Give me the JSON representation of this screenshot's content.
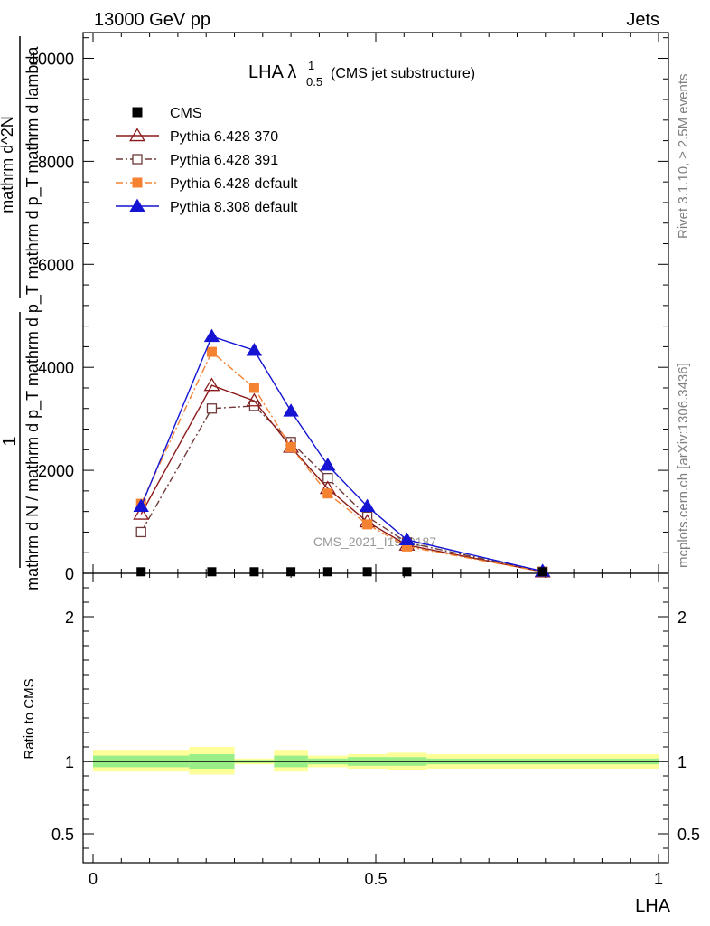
{
  "header": {
    "energy_label": "13000 GeV pp",
    "category_label": "Jets"
  },
  "side_labels": {
    "rivet": "Rivet 3.1.10, ≥ 2.5M events",
    "mcplots": "mcplots.cern.ch [arXiv:1306.3436]"
  },
  "chart_data": {
    "type": "line",
    "title_main": "LHA λ",
    "title_sup": "1",
    "title_sub": "0.5",
    "title_suffix": "(CMS jet substructure)",
    "watermark": "CMS_2021_I1920187",
    "xlabel": "LHA",
    "ylabel_top": "1",
    "ylabel_bottom": "mathrm d N / mathrm d p_T mathrm d p_T",
    "ylabel_right_num": "mathrm d^2N",
    "ylabel_right_den": "mathrm d p_T mathrm d lambda",
    "ratio_ylabel": "Ratio to CMS",
    "xlim": [
      0,
      1
    ],
    "ylim": [
      0,
      10500
    ],
    "ratio_ylim": [
      0.3,
      2.3
    ],
    "x_ticks": [
      "0",
      "0.5",
      "1"
    ],
    "y_ticks": [
      "0",
      "2000",
      "4000",
      "6000",
      "8000",
      "10000"
    ],
    "ratio_ticks": [
      "0.5",
      "1",
      "2"
    ],
    "x": [
      0.085,
      0.21,
      0.285,
      0.35,
      0.415,
      0.485,
      0.555,
      0.795
    ],
    "series": [
      {
        "name": "CMS",
        "color": "#000000",
        "marker": "square-filled",
        "line": "none",
        "values": [
          30,
          30,
          30,
          30,
          30,
          30,
          30,
          30
        ]
      },
      {
        "name": "Pythia 6.428 370",
        "color": "#8b1a1a",
        "marker": "triangle-open",
        "line": "solid",
        "values": [
          1150,
          3650,
          3350,
          2450,
          1650,
          1000,
          550,
          30
        ]
      },
      {
        "name": "Pythia 6.428 391",
        "color": "#6e3a3a",
        "marker": "square-open",
        "line": "dashdot",
        "values": [
          800,
          3200,
          3250,
          2550,
          1850,
          1100,
          600,
          30
        ]
      },
      {
        "name": "Pythia 6.428 default",
        "color": "#f58231",
        "marker": "square-filled",
        "line": "dashdot",
        "values": [
          1350,
          4300,
          3600,
          2450,
          1550,
          950,
          520,
          30
        ]
      },
      {
        "name": "Pythia 8.308 default",
        "color": "#1414d2",
        "marker": "triangle-filled",
        "line": "solid",
        "values": [
          1300,
          4600,
          4330,
          3150,
          2100,
          1300,
          650,
          40
        ]
      }
    ],
    "ratio_bands": [
      {
        "x0": 0.0,
        "x1": 0.17,
        "outer": [
          0.93,
          1.08
        ],
        "inner": [
          0.96,
          1.04
        ]
      },
      {
        "x0": 0.17,
        "x1": 0.25,
        "outer": [
          0.91,
          1.1
        ],
        "inner": [
          0.95,
          1.05
        ]
      },
      {
        "x0": 0.25,
        "x1": 0.32,
        "outer": [
          0.98,
          1.02
        ],
        "inner": [
          0.99,
          1.01
        ]
      },
      {
        "x0": 0.32,
        "x1": 0.38,
        "outer": [
          0.93,
          1.08
        ],
        "inner": [
          0.96,
          1.04
        ]
      },
      {
        "x0": 0.38,
        "x1": 0.45,
        "outer": [
          0.96,
          1.04
        ],
        "inner": [
          0.98,
          1.02
        ]
      },
      {
        "x0": 0.45,
        "x1": 0.52,
        "outer": [
          0.95,
          1.05
        ],
        "inner": [
          0.97,
          1.03
        ]
      },
      {
        "x0": 0.52,
        "x1": 0.59,
        "outer": [
          0.94,
          1.06
        ],
        "inner": [
          0.97,
          1.03
        ]
      },
      {
        "x0": 0.59,
        "x1": 1.0,
        "outer": [
          0.95,
          1.05
        ],
        "inner": [
          0.98,
          1.02
        ]
      }
    ]
  }
}
